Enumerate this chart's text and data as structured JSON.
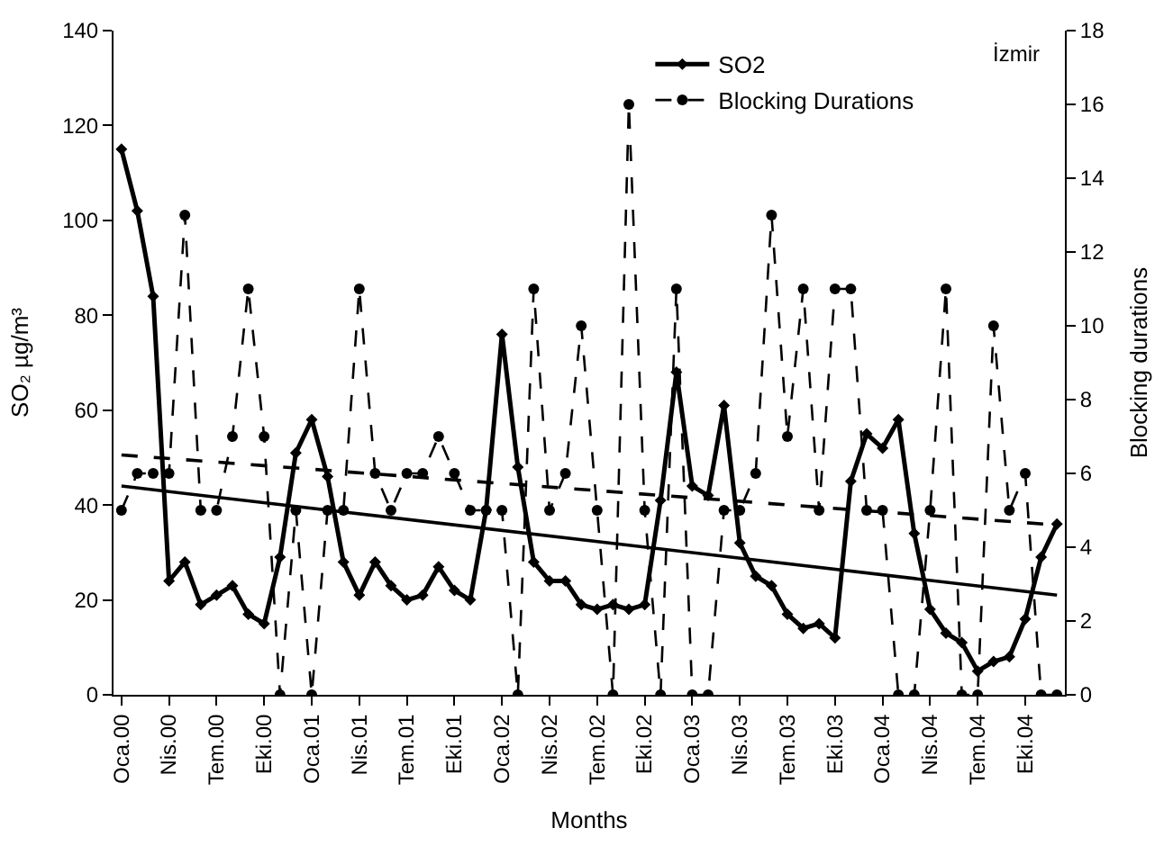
{
  "chart_data": {
    "type": "line",
    "xlabel": "Months",
    "ylabel": "SO₂ µg/m³",
    "y2label": "Blocking durations",
    "annotations": [
      "İzmir"
    ],
    "categories": [
      "Oca.00",
      null,
      null,
      "Nis.00",
      null,
      null,
      "Tem.00",
      null,
      null,
      "Eki.00",
      null,
      null,
      "Oca.01",
      null,
      null,
      "Nis.01",
      null,
      null,
      "Tem.01",
      null,
      null,
      "Eki.01",
      null,
      null,
      "Oca.02",
      null,
      null,
      "Nis.02",
      null,
      null,
      "Tem.02",
      null,
      null,
      "Eki.02",
      null,
      null,
      "Oca.03",
      null,
      null,
      "Nis.03",
      null,
      null,
      "Tem.03",
      null,
      null,
      "Eki.03",
      null,
      null,
      "Oca.04",
      null,
      null,
      "Nis.04",
      null,
      null,
      "Tem.04",
      null,
      null,
      "Eki.04",
      null,
      null
    ],
    "series": [
      {
        "name": "SO2",
        "color": "#000000",
        "marker": "diamond",
        "line_style": "solid",
        "values": [
          115,
          102,
          84,
          24,
          28,
          19,
          21,
          23,
          17,
          15,
          29,
          51,
          58,
          46,
          28,
          21,
          28,
          23,
          20,
          21,
          27,
          22,
          20,
          39,
          76,
          48,
          28,
          24,
          24,
          19,
          18,
          19,
          18,
          19,
          41,
          68,
          44,
          42,
          61,
          32,
          25,
          23,
          17,
          14,
          15,
          12,
          45,
          55,
          52,
          58,
          34,
          18,
          13,
          11,
          5,
          7,
          8,
          16,
          29,
          36
        ]
      },
      {
        "name": "Blocking Durations",
        "axis": "y2",
        "color": "#000000",
        "marker": "circle",
        "line_style": "dashed",
        "values": [
          5,
          6,
          6,
          6,
          13,
          5,
          5,
          7,
          11,
          7,
          0,
          5,
          0,
          5,
          5,
          11,
          6,
          5,
          6,
          6,
          7,
          6,
          5,
          5,
          5,
          0,
          11,
          5,
          6,
          10,
          5,
          0,
          16,
          5,
          0,
          11,
          0,
          0,
          5,
          5,
          6,
          13,
          7,
          11,
          5,
          11,
          11,
          5,
          5,
          0,
          0,
          5,
          11,
          0,
          0,
          10,
          5,
          6,
          0,
          0
        ]
      },
      {
        "color": "#000000",
        "marker": "none",
        "line_style": "solid",
        "values": [
          44,
          null,
          null,
          null,
          null,
          null,
          null,
          null,
          null,
          null,
          null,
          null,
          null,
          null,
          null,
          null,
          null,
          null,
          null,
          null,
          null,
          null,
          null,
          null,
          null,
          null,
          null,
          null,
          null,
          null,
          null,
          null,
          null,
          null,
          null,
          null,
          null,
          null,
          null,
          null,
          null,
          null,
          null,
          null,
          null,
          null,
          null,
          null,
          null,
          null,
          null,
          null,
          null,
          null,
          null,
          null,
          null,
          null,
          null,
          21
        ]
      },
      {
        "axis": "y2",
        "color": "#000000",
        "marker": "none",
        "line_style": "dashed",
        "values": [
          6.5,
          null,
          null,
          null,
          null,
          null,
          null,
          null,
          null,
          null,
          null,
          null,
          null,
          null,
          null,
          null,
          null,
          null,
          null,
          null,
          null,
          null,
          null,
          null,
          null,
          null,
          null,
          null,
          null,
          null,
          null,
          null,
          null,
          null,
          null,
          null,
          null,
          null,
          null,
          null,
          null,
          null,
          null,
          null,
          null,
          null,
          null,
          null,
          null,
          null,
          null,
          null,
          null,
          null,
          null,
          null,
          null,
          null,
          null,
          4.6
        ]
      }
    ],
    "ylim": [
      0,
      140
    ],
    "yticks": [
      0,
      20,
      40,
      60,
      80,
      100,
      120,
      140
    ],
    "y2lim": [
      0,
      18
    ],
    "y2ticks": [
      0,
      2,
      4,
      6,
      8,
      10,
      12,
      14,
      16,
      18
    ],
    "legend": "top right"
  }
}
